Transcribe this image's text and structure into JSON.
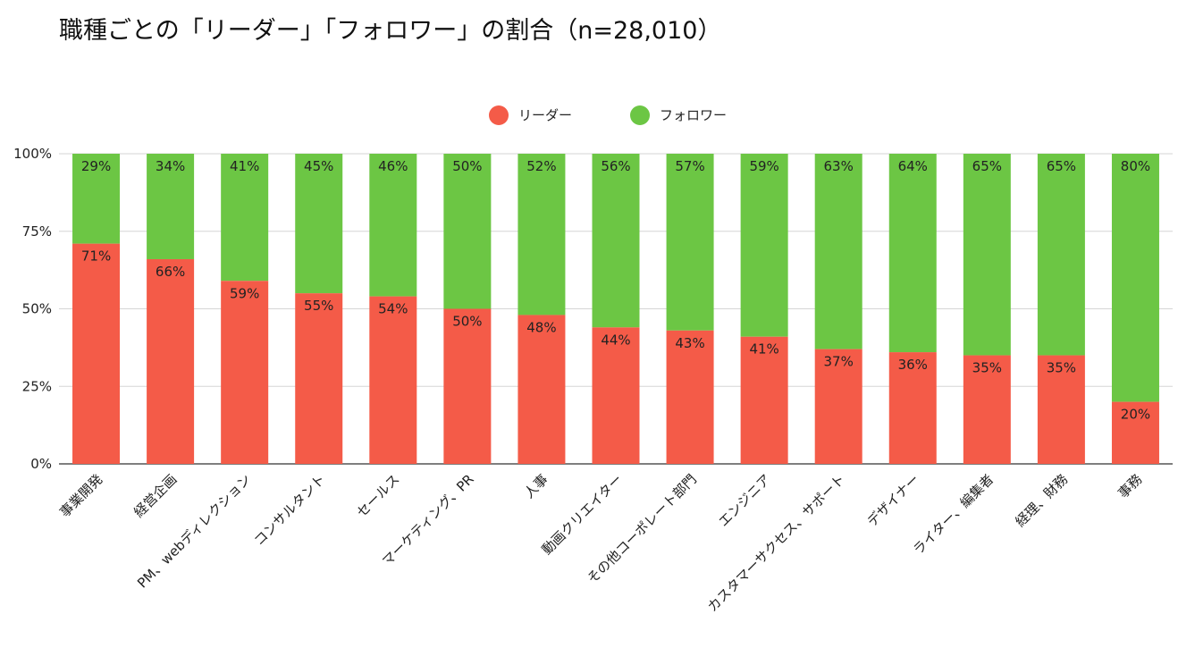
{
  "title": "職種ごとの「リーダー」「フォロワー」の割合（n=28,010）",
  "colors": {
    "leader": "#f45b48",
    "follower": "#6cc644",
    "grid": "#d6d6d6",
    "axis": "#333333"
  },
  "chart_data": {
    "type": "bar",
    "stacked": true,
    "title": "職種ごとの「リーダー」「フォロワー」の割合（n=28,010）",
    "categories": [
      "事業開発",
      "経営企画",
      "PM、webディレクション",
      "コンサルタント",
      "セールス",
      "マーケティング、PR",
      "人事",
      "動画クリエイター",
      "その他コーポレート部門",
      "エンジニア",
      "カスタマーサクセス、サポート",
      "デザイナー",
      "ライター、編集者",
      "経理、財務",
      "事務"
    ],
    "series": [
      {
        "name": "リーダー",
        "values": [
          71,
          66,
          59,
          55,
          54,
          50,
          48,
          44,
          43,
          41,
          37,
          36,
          35,
          35,
          20
        ]
      },
      {
        "name": "フォロワー",
        "values": [
          29,
          34,
          41,
          45,
          46,
          50,
          52,
          56,
          57,
          59,
          63,
          64,
          65,
          65,
          80
        ]
      }
    ],
    "ylim": [
      0,
      100
    ],
    "yticks": [
      "0%",
      "25%",
      "50%",
      "75%",
      "100%"
    ],
    "legend_position": "top",
    "grid": true
  }
}
